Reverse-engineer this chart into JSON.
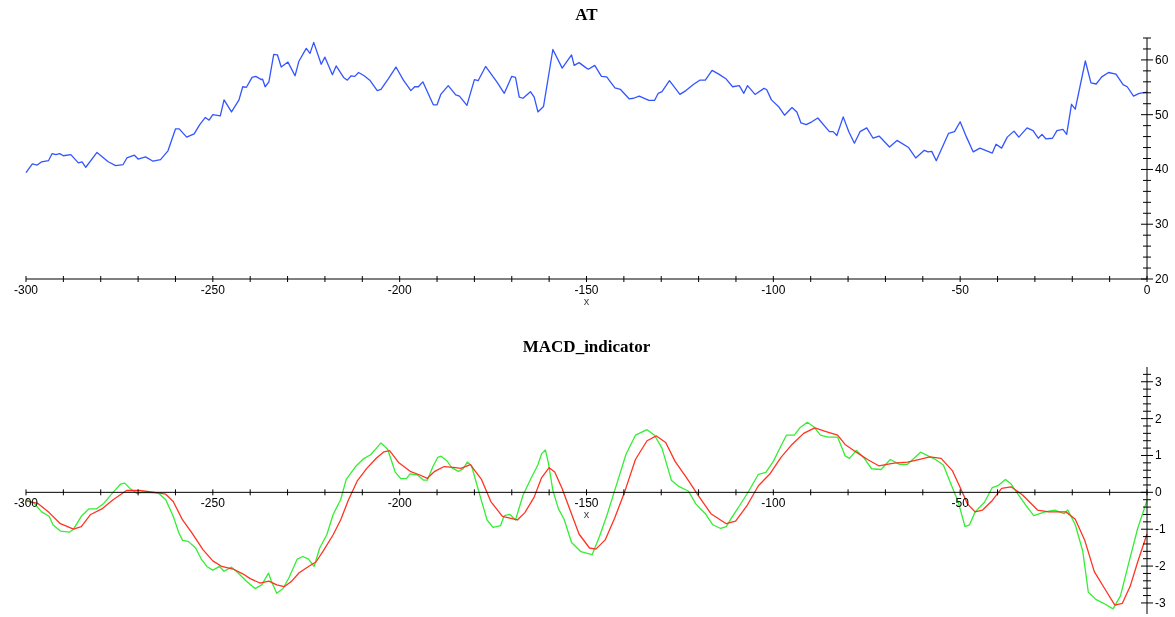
{
  "chart_data": [
    {
      "type": "line",
      "title": "AT",
      "xlabel": "x",
      "xlim": [
        -300,
        0
      ],
      "ylim": [
        20,
        64
      ],
      "xticks": [
        -300,
        {
          "value": -290,
          "label": null
        },
        {
          "value": -280,
          "label": null
        },
        {
          "value": -270,
          "label": null
        },
        {
          "value": -260,
          "label": null
        },
        -250,
        {
          "value": -240,
          "label": null
        },
        {
          "value": -230,
          "label": null
        },
        {
          "value": -220,
          "label": null
        },
        {
          "value": -210,
          "label": null
        },
        -200,
        {
          "value": -190,
          "label": null
        },
        {
          "value": -180,
          "label": null
        },
        {
          "value": -170,
          "label": null
        },
        {
          "value": -160,
          "label": null
        },
        -150,
        {
          "value": -140,
          "label": null
        },
        {
          "value": -130,
          "label": null
        },
        {
          "value": -120,
          "label": null
        },
        {
          "value": -110,
          "label": null
        },
        -100,
        {
          "value": -90,
          "label": null
        },
        {
          "value": -80,
          "label": null
        },
        {
          "value": -70,
          "label": null
        },
        {
          "value": -60,
          "label": null
        },
        -50,
        {
          "value": -40,
          "label": null
        },
        {
          "value": -30,
          "label": null
        },
        {
          "value": -20,
          "label": null
        },
        {
          "value": -10,
          "label": null
        },
        0
      ],
      "yticks": [
        20,
        {
          "value": 22,
          "label": null
        },
        {
          "value": 24,
          "label": null
        },
        {
          "value": 26,
          "label": null
        },
        {
          "value": 28,
          "label": null
        },
        30,
        {
          "value": 32,
          "label": null
        },
        {
          "value": 34,
          "label": null
        },
        {
          "value": 36,
          "label": null
        },
        {
          "value": 38,
          "label": null
        },
        40,
        {
          "value": 42,
          "label": null
        },
        {
          "value": 44,
          "label": null
        },
        {
          "value": 46,
          "label": null
        },
        {
          "value": 48,
          "label": null
        },
        50,
        {
          "value": 52,
          "label": null
        },
        {
          "value": 54,
          "label": null
        },
        {
          "value": 56,
          "label": null
        },
        {
          "value": 58,
          "label": null
        },
        60,
        {
          "value": 62,
          "label": null
        },
        {
          "value": 64,
          "label": null
        }
      ],
      "series": [
        {
          "color": "#3355ff",
          "x": [
            -300,
            -298.3,
            -297,
            -295.8,
            -294,
            -293,
            -292,
            -291,
            -290,
            -288,
            -286,
            -285,
            -284,
            -281,
            -278,
            -276,
            -274,
            -273,
            -271,
            -270,
            -268,
            -266,
            -264,
            -262,
            -260,
            -259,
            -257,
            -255,
            -253.5,
            -252,
            -251,
            -250,
            -248,
            -247,
            -245,
            -243,
            -242,
            -241,
            -239.5,
            -238.5,
            -237,
            -236.7,
            -236,
            -235,
            -233.7,
            -232.7,
            -231.7,
            -229.9,
            -228,
            -227,
            -225,
            -224,
            -223,
            -221,
            -220,
            -218,
            -217,
            -215,
            -214,
            -213,
            -212,
            -211,
            -209.5,
            -208,
            -206,
            -205,
            -203,
            -201,
            -199,
            -197,
            -196,
            -195,
            -193.8,
            -191,
            -190,
            -189,
            -187,
            -185,
            -184,
            -182,
            -180,
            -179,
            -177,
            -174,
            -172,
            -170,
            -169,
            -168,
            -167,
            -165,
            -164,
            -163,
            -161.5,
            -159,
            -156.5,
            -154,
            -153.3,
            -152,
            -150,
            -149.5,
            -147.8,
            -146,
            -144.6,
            -142.4,
            -140.9,
            -138.6,
            -137.4,
            -135.9,
            -133.3,
            -131.8,
            -130.8,
            -129.8,
            -127.8,
            -125,
            -123.4,
            -121.4,
            -119.7,
            -118.2,
            -116.4,
            -114.6,
            -112.6,
            -110.9,
            -109.1,
            -107.9,
            -106.9,
            -104.9,
            -102.5,
            -101.8,
            -100.5,
            -98.5,
            -97,
            -95,
            -93.7,
            -92.6,
            -91.2,
            -89.7,
            -88.1,
            -85,
            -84,
            -83,
            -81.3,
            -79.8,
            -78.3,
            -76.8,
            -75,
            -73.3,
            -71.7,
            -68.9,
            -66.9,
            -63.8,
            -61.9,
            -59.6,
            -58.6,
            -57.6,
            -56.4,
            -53.1,
            -51.5,
            -50,
            -48.3,
            -46.5,
            -44.7,
            -41.4,
            -40.4,
            -38.9,
            -37.4,
            -35.6,
            -34.3,
            -32.1,
            -30.5,
            -29.1,
            -28.1,
            -27.1,
            -25.3,
            -24.1,
            -22.5,
            -21.5,
            -20.2,
            -19.2,
            -16.5,
            -15,
            -13.6,
            -12.1,
            -10.3,
            -8.3,
            -6.4,
            -5.3,
            -3.6,
            -2.1,
            0
          ],
          "values": [
            39.4,
            41.0,
            40.8,
            41.4,
            41.6,
            42.9,
            42.7,
            42.9,
            42.5,
            42.7,
            41.2,
            41.4,
            40.4,
            43.1,
            41.4,
            40.7,
            40.9,
            42.1,
            42.6,
            41.9,
            42.3,
            41.5,
            41.8,
            43.4,
            47.4,
            47.4,
            45.9,
            46.5,
            48.2,
            49.5,
            49.0,
            50.0,
            49.8,
            52.7,
            50.5,
            52.7,
            55.1,
            55.0,
            56.8,
            57.0,
            56.4,
            56.5,
            55.1,
            56.0,
            61.0,
            60.9,
            58.7,
            59.6,
            57.1,
            59.7,
            62.1,
            61.2,
            63.2,
            59.2,
            60.5,
            57.3,
            58.9,
            56.8,
            56.3,
            57.1,
            57.0,
            57.7,
            57.1,
            56.3,
            54.4,
            54.6,
            56.6,
            58.7,
            56.3,
            54.4,
            55.1,
            55.1,
            56.0,
            51.8,
            51.8,
            53.7,
            55.3,
            53.6,
            53.4,
            51.7,
            56.4,
            56.2,
            58.8,
            56.0,
            53.9,
            57.0,
            56.8,
            53.2,
            53.0,
            54.2,
            53.2,
            50.5,
            51.5,
            61.9,
            58.5,
            60.9,
            59.0,
            59.5,
            58.5,
            58.3,
            59.0,
            57.0,
            56.9,
            54.9,
            54.6,
            52.9,
            53.0,
            53.4,
            52.6,
            52.6,
            53.9,
            54.2,
            56.2,
            53.7,
            54.4,
            55.5,
            56.3,
            56.3,
            58.1,
            57.4,
            56.5,
            55.1,
            55.3,
            53.9,
            55.3,
            53.7,
            54.8,
            54.6,
            52.7,
            51.4,
            49.9,
            51.3,
            50.5,
            48.5,
            48.2,
            48.7,
            49.4,
            46.9,
            46.9,
            46.2,
            49.6,
            46.9,
            44.8,
            46.9,
            47.6,
            45.7,
            46.1,
            44.1,
            45.3,
            44.0,
            42.1,
            43.5,
            43.2,
            43.3,
            41.6,
            46.6,
            46.9,
            48.7,
            45.9,
            43.2,
            43.9,
            43.0,
            44.6,
            43.9,
            45.9,
            47.0,
            45.9,
            47.6,
            47.1,
            45.7,
            46.4,
            45.6,
            45.7,
            47.1,
            47.3,
            46.4,
            51.9,
            51.0,
            59.8,
            55.8,
            55.6,
            56.9,
            57.7,
            57.4,
            55.5,
            55.1,
            53.4,
            53.9,
            54.1
          ]
        }
      ]
    },
    {
      "type": "line",
      "title": "MACD_indicator",
      "xlabel": "x",
      "xlim": [
        -300,
        0
      ],
      "ylim": [
        -3.3,
        3.4
      ],
      "xticks": [
        -300,
        {
          "value": -290,
          "label": null
        },
        {
          "value": -280,
          "label": null
        },
        {
          "value": -270,
          "label": null
        },
        {
          "value": -260,
          "label": null
        },
        -250,
        {
          "value": -240,
          "label": null
        },
        {
          "value": -230,
          "label": null
        },
        {
          "value": -220,
          "label": null
        },
        {
          "value": -210,
          "label": null
        },
        -200,
        {
          "value": -190,
          "label": null
        },
        {
          "value": -180,
          "label": null
        },
        {
          "value": -170,
          "label": null
        },
        {
          "value": -160,
          "label": null
        },
        -150,
        {
          "value": -140,
          "label": null
        },
        {
          "value": -130,
          "label": null
        },
        {
          "value": -120,
          "label": null
        },
        {
          "value": -110,
          "label": null
        },
        -100,
        {
          "value": -90,
          "label": null
        },
        {
          "value": -80,
          "label": null
        },
        {
          "value": -70,
          "label": null
        },
        {
          "value": -60,
          "label": null
        },
        -50,
        {
          "value": -40,
          "label": null
        },
        {
          "value": -30,
          "label": null
        },
        {
          "value": -20,
          "label": null
        },
        {
          "value": -10,
          "label": null
        },
        {
          "value": 0,
          "label": null
        }
      ],
      "yticks": [
        -3,
        {
          "value": -2.8,
          "label": null
        },
        {
          "value": -2.6,
          "label": null
        },
        {
          "value": -2.4,
          "label": null
        },
        {
          "value": -2.2,
          "label": null
        },
        -2,
        {
          "value": -1.8,
          "label": null
        },
        {
          "value": -1.6,
          "label": null
        },
        {
          "value": -1.4,
          "label": null
        },
        {
          "value": -1.2,
          "label": null
        },
        -1,
        {
          "value": -0.8,
          "label": null
        },
        {
          "value": -0.6,
          "label": null
        },
        {
          "value": -0.4,
          "label": null
        },
        {
          "value": -0.2,
          "label": null
        },
        0,
        {
          "value": 0.2,
          "label": null
        },
        {
          "value": 0.4,
          "label": null
        },
        {
          "value": 0.6,
          "label": null
        },
        {
          "value": 0.8,
          "label": null
        },
        1,
        {
          "value": 1.2,
          "label": null
        },
        {
          "value": 1.4,
          "label": null
        },
        {
          "value": 1.6,
          "label": null
        },
        {
          "value": 1.8,
          "label": null
        },
        2,
        {
          "value": 2.2,
          "label": null
        },
        {
          "value": 2.4,
          "label": null
        },
        {
          "value": 2.6,
          "label": null
        },
        {
          "value": 2.8,
          "label": null
        },
        3,
        {
          "value": 3.2,
          "label": null
        }
      ],
      "series": [
        {
          "color": "#33ee33",
          "x": [
            -300,
            -297.8,
            -295.8,
            -293.8,
            -292.8,
            -290.8,
            -288.4,
            -287.3,
            -285.2,
            -283.2,
            -281.2,
            -279.2,
            -276.7,
            -274.7,
            -273.6,
            -272.1,
            -270.3,
            -268.6,
            -264.6,
            -262.6,
            -260.6,
            -259.1,
            -258.1,
            -256.6,
            -254.6,
            -253.1,
            -251.6,
            -250,
            -248.2,
            -247,
            -245,
            -243.5,
            -241,
            -238.7,
            -236.9,
            -235.1,
            -234.4,
            -232.9,
            -231.2,
            -229.6,
            -227.4,
            -225.9,
            -224.4,
            -222.9,
            -221.4,
            -219.5,
            -217.8,
            -215.8,
            -214.3,
            -211.8,
            -209.8,
            -207.8,
            -206.2,
            -205,
            -203.2,
            -201.2,
            -199.7,
            -198.2,
            -197.2,
            -195.2,
            -193.6,
            -192.6,
            -191.1,
            -189.8,
            -188.9,
            -187.3,
            -186.1,
            -184.3,
            -183.1,
            -181.9,
            -180.8,
            -179.6,
            -178.1,
            -176.6,
            -175,
            -173,
            -172,
            -170.5,
            -169,
            -167,
            -165,
            -163,
            -162,
            -161,
            -160.2,
            -159,
            -157.5,
            -156,
            -154,
            -151.5,
            -148.5,
            -146.5,
            -144.4,
            -141.9,
            -139.4,
            -136.9,
            -133.8,
            -131.8,
            -129.8,
            -127.3,
            -125.3,
            -122.7,
            -120.7,
            -118.2,
            -116.2,
            -114.1,
            -112.6,
            -111.1,
            -109.1,
            -106.6,
            -104,
            -102,
            -100,
            -98,
            -96.5,
            -94.4,
            -92.9,
            -90.9,
            -89.1,
            -87.4,
            -85.4,
            -82.8,
            -80.8,
            -79.6,
            -77.8,
            -75.8,
            -73.7,
            -71.2,
            -68.7,
            -66.2,
            -64.1,
            -60.6,
            -58.6,
            -56.6,
            -54.5,
            -52.5,
            -50.5,
            -48.7,
            -47.5,
            -46,
            -43.5,
            -41.4,
            -39.9,
            -37.9,
            -36.4,
            -34.4,
            -32.3,
            -30.3,
            -27.3,
            -24.7,
            -22.2,
            -21.2,
            -19.2,
            -17.2,
            -15.7,
            -13.6,
            -11.6,
            -9.1,
            -7.1,
            -5.1,
            -2.5,
            0
          ],
          "values": [
            -0.2,
            -0.3,
            -0.53,
            -0.65,
            -0.88,
            -1.05,
            -1.08,
            -1.0,
            -0.65,
            -0.45,
            -0.45,
            -0.3,
            0,
            0.22,
            0.25,
            0.1,
            -0.03,
            0,
            -0.02,
            -0.2,
            -0.65,
            -1.1,
            -1.3,
            -1.33,
            -1.51,
            -1.81,
            -2.01,
            -2.11,
            -2.01,
            -2.14,
            -2.03,
            -2.16,
            -2.41,
            -2.61,
            -2.51,
            -2.19,
            -2.39,
            -2.74,
            -2.61,
            -2.31,
            -1.81,
            -1.74,
            -1.81,
            -2.01,
            -1.51,
            -1.15,
            -0.6,
            -0.2,
            0.35,
            0.7,
            0.9,
            1.02,
            1.2,
            1.34,
            1.17,
            0.55,
            0.37,
            0.37,
            0.5,
            0.47,
            0.33,
            0.33,
            0.7,
            0.95,
            0.98,
            0.85,
            0.67,
            0.57,
            0.63,
            0.82,
            0.73,
            0.3,
            -0.23,
            -0.75,
            -0.95,
            -0.9,
            -0.63,
            -0.6,
            -0.75,
            -0.08,
            0.35,
            0.75,
            1.05,
            1.15,
            0.8,
            0.05,
            -0.45,
            -0.73,
            -1.36,
            -1.61,
            -1.69,
            -1.19,
            -0.58,
            0.23,
            1.04,
            1.55,
            1.7,
            1.55,
            1.2,
            0.33,
            0.16,
            0.03,
            -0.32,
            -0.58,
            -0.88,
            -0.98,
            -0.93,
            -0.68,
            -0.37,
            0.03,
            0.49,
            0.54,
            0.84,
            1.25,
            1.55,
            1.55,
            1.75,
            1.9,
            1.77,
            1.55,
            1.5,
            1.5,
            0.99,
            0.92,
            1.14,
            0.94,
            0.64,
            0.62,
            0.89,
            0.76,
            0.76,
            1.09,
            0.99,
            0.89,
            0.74,
            0.23,
            -0.27,
            -0.93,
            -0.88,
            -0.53,
            -0.27,
            0.13,
            0.18,
            0.35,
            0.23,
            -0.07,
            -0.37,
            -0.63,
            -0.53,
            -0.48,
            -0.58,
            -0.48,
            -0.88,
            -1.59,
            -2.71,
            -2.91,
            -3.01,
            -3.16,
            -2.81,
            -2.0,
            -0.98,
            -0.22
          ]
        },
        {
          "color": "#ff3322",
          "x": [
            -300,
            -296.8,
            -293.8,
            -290.8,
            -287.3,
            -285.2,
            -282.7,
            -279.7,
            -276.7,
            -273.1,
            -269.6,
            -265.6,
            -262.6,
            -260.6,
            -258.1,
            -255.6,
            -252.6,
            -250,
            -247.6,
            -244.6,
            -242,
            -240,
            -237.4,
            -235,
            -232.9,
            -230.9,
            -228.9,
            -226.9,
            -224.4,
            -222.4,
            -220.4,
            -217.8,
            -215.8,
            -213.8,
            -211.3,
            -208.8,
            -206.2,
            -204.2,
            -202.7,
            -200.2,
            -197.2,
            -194.6,
            -192.6,
            -190.6,
            -188.1,
            -185.6,
            -183.6,
            -181.1,
            -178.1,
            -175.6,
            -172.5,
            -170.5,
            -168.5,
            -166.5,
            -164,
            -162,
            -160,
            -158.5,
            -156.5,
            -154.5,
            -152,
            -149.2,
            -147.5,
            -145,
            -142.4,
            -139.9,
            -136.9,
            -133.8,
            -131.3,
            -128.8,
            -126.3,
            -123.2,
            -120.2,
            -116.7,
            -112.6,
            -110.1,
            -107.1,
            -104,
            -101,
            -98,
            -95,
            -91.9,
            -88.9,
            -85.9,
            -82.8,
            -80.8,
            -77.8,
            -74.8,
            -71.8,
            -67.7,
            -64.1,
            -61.1,
            -58.1,
            -55.1,
            -52.1,
            -50,
            -48,
            -46,
            -44,
            -41.4,
            -38.9,
            -36.4,
            -33.3,
            -29.3,
            -26.3,
            -21.7,
            -19.2,
            -16.7,
            -14.1,
            -11.1,
            -8.6,
            -6.6,
            -4.5,
            -2.5,
            0
          ],
          "values": [
            -0.23,
            -0.3,
            -0.55,
            -0.85,
            -1.0,
            -0.93,
            -0.6,
            -0.45,
            -0.2,
            0.05,
            0.05,
            0,
            -0.05,
            -0.25,
            -0.75,
            -1.1,
            -1.56,
            -1.86,
            -2.01,
            -2.08,
            -2.21,
            -2.34,
            -2.46,
            -2.41,
            -2.51,
            -2.56,
            -2.41,
            -2.18,
            -2.01,
            -1.89,
            -1.58,
            -1.15,
            -0.75,
            -0.23,
            0.32,
            0.65,
            0.93,
            1.1,
            1.13,
            0.8,
            0.57,
            0.47,
            0.38,
            0.57,
            0.7,
            0.68,
            0.65,
            0.75,
            0.35,
            -0.25,
            -0.65,
            -0.7,
            -0.75,
            -0.55,
            -0.13,
            0.4,
            0.67,
            0.55,
            0.1,
            -0.45,
            -1.13,
            -1.51,
            -1.54,
            -1.29,
            -0.68,
            -0.02,
            0.89,
            1.4,
            1.53,
            1.35,
            0.84,
            0.39,
            -0.07,
            -0.58,
            -0.85,
            -0.78,
            -0.37,
            0.18,
            0.49,
            0.94,
            1.3,
            1.6,
            1.75,
            1.65,
            1.55,
            1.3,
            1.09,
            0.89,
            0.72,
            0.79,
            0.82,
            0.89,
            0.96,
            0.92,
            0.59,
            0.13,
            -0.32,
            -0.53,
            -0.48,
            -0.22,
            0.11,
            0.15,
            -0.07,
            -0.48,
            -0.53,
            -0.53,
            -0.73,
            -1.29,
            -2.15,
            -2.65,
            -3.06,
            -3.01,
            -2.55,
            -1.89,
            -1.13
          ]
        }
      ]
    }
  ]
}
